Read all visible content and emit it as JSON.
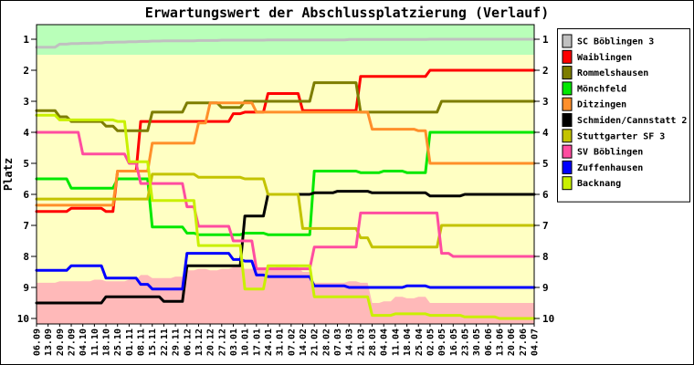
{
  "title": "Erwartungswert der Abschlussplatzierung (Verlauf)",
  "chart_data": {
    "type": "line",
    "title": "Erwartungswert der Abschlussplatzierung (Verlauf)",
    "xlabel": "",
    "ylabel": "Platz",
    "y_axis_inverted": true,
    "y_ticks": [
      1,
      2,
      3,
      4,
      5,
      6,
      7,
      8,
      9,
      10
    ],
    "ylim": [
      0.5,
      10.2
    ],
    "grid": false,
    "legend_position": "top-right",
    "x_tick_labels": [
      "06.09",
      "13.09",
      "20.09",
      "27.09",
      "04.10",
      "11.10",
      "18.10",
      "25.10",
      "01.11",
      "08.11",
      "15.11",
      "22.11",
      "29.11",
      "06.12",
      "13.12",
      "20.12",
      "27.12",
      "03.01",
      "10.01",
      "17.01",
      "24.01",
      "31.01",
      "07.02",
      "14.02",
      "21.02",
      "28.02",
      "07.03",
      "14.03",
      "21.03",
      "28.03",
      "04.04",
      "11.04",
      "18.04",
      "25.04",
      "02.05",
      "09.05",
      "16.05",
      "23.05",
      "30.05",
      "06.06",
      "13.06",
      "20.06",
      "27.06",
      "04.07"
    ],
    "background_zones": [
      {
        "name": "promotion-zone",
        "color": "#b9ffb9",
        "from_platz": 0.5,
        "to_platz": 1.5
      },
      {
        "name": "plot-background",
        "color": "#ffffc3"
      },
      {
        "name": "relegation-zone",
        "color": "#ffb9b9",
        "to_platz": 10.2,
        "top_edge_by_week": [
          8.85,
          8.85,
          8.8,
          8.8,
          8.8,
          8.75,
          8.8,
          8.8,
          8.75,
          8.6,
          8.7,
          8.7,
          8.65,
          8.45,
          8.4,
          8.45,
          8.4,
          8.35,
          8.4,
          8.35,
          8.35,
          8.3,
          8.35,
          8.5,
          8.85,
          8.85,
          8.85,
          8.8,
          8.85,
          9.5,
          9.45,
          9.3,
          9.35,
          9.3,
          9.5,
          9.5,
          9.5,
          9.5,
          9.5,
          9.5,
          9.5,
          9.5,
          9.5,
          9.5
        ]
      }
    ],
    "series": [
      {
        "name": "SC Böblingen 3",
        "color": "#c0c0c0",
        "values": [
          1.26,
          1.26,
          1.16,
          1.14,
          1.13,
          1.12,
          1.1,
          1.09,
          1.08,
          1.07,
          1.06,
          1.05,
          1.05,
          1.05,
          1.04,
          1.04,
          1.03,
          1.03,
          1.03,
          1.03,
          1.02,
          1.02,
          1.02,
          1.02,
          1.02,
          1.02,
          1.02,
          1.01,
          1.01,
          1.01,
          1.01,
          1.01,
          1.01,
          1.01,
          1.0,
          1.0,
          1.0,
          1.0,
          1.0,
          1.0,
          1.0,
          1.0,
          1.0,
          1.0
        ]
      },
      {
        "name": "Waiblingen",
        "color": "#ff0000",
        "values": [
          6.55,
          6.55,
          6.55,
          6.45,
          6.45,
          6.45,
          6.55,
          5.25,
          5.25,
          3.65,
          3.65,
          3.65,
          3.65,
          3.65,
          3.65,
          3.65,
          3.65,
          3.4,
          3.35,
          3.35,
          2.75,
          2.75,
          2.75,
          3.3,
          3.3,
          3.3,
          3.3,
          3.3,
          2.2,
          2.2,
          2.2,
          2.2,
          2.2,
          2.2,
          2.0,
          2.0,
          2.0,
          2.0,
          2.0,
          2.0,
          2.0,
          2.0,
          2.0,
          2.0
        ]
      },
      {
        "name": "Rommelshausen",
        "color": "#7d7d00",
        "values": [
          3.3,
          3.3,
          3.5,
          3.65,
          3.65,
          3.65,
          3.8,
          3.95,
          3.95,
          3.95,
          3.35,
          3.35,
          3.35,
          3.05,
          3.05,
          3.05,
          3.2,
          3.2,
          3.0,
          3.0,
          3.0,
          3.0,
          3.0,
          3.0,
          2.4,
          2.4,
          2.4,
          2.4,
          3.35,
          3.35,
          3.35,
          3.35,
          3.35,
          3.35,
          3.35,
          3.0,
          3.0,
          3.0,
          3.0,
          3.0,
          3.0,
          3.0,
          3.0,
          3.0
        ]
      },
      {
        "name": "Mönchfeld",
        "color": "#00e800",
        "values": [
          5.5,
          5.5,
          5.5,
          5.8,
          5.8,
          5.8,
          5.8,
          5.5,
          5.5,
          5.5,
          7.05,
          7.05,
          7.05,
          7.25,
          7.3,
          7.3,
          7.3,
          7.3,
          7.25,
          7.25,
          7.3,
          7.3,
          7.3,
          7.3,
          5.25,
          5.25,
          5.25,
          5.25,
          5.3,
          5.3,
          5.25,
          5.25,
          5.3,
          5.3,
          4.0,
          4.0,
          4.0,
          4.0,
          4.0,
          4.0,
          4.0,
          4.0,
          4.0,
          4.0
        ]
      },
      {
        "name": "Ditzingen",
        "color": "#ff8f2a",
        "values": [
          6.35,
          6.35,
          6.35,
          6.35,
          6.35,
          6.35,
          6.35,
          5.25,
          5.25,
          5.25,
          4.35,
          4.35,
          4.35,
          4.35,
          3.7,
          3.05,
          3.05,
          3.05,
          3.05,
          3.35,
          3.35,
          3.35,
          3.35,
          3.35,
          3.35,
          3.35,
          3.35,
          3.35,
          3.35,
          3.9,
          3.9,
          3.9,
          3.9,
          3.95,
          5.0,
          5.0,
          5.0,
          5.0,
          5.0,
          5.0,
          5.0,
          5.0,
          5.0,
          5.0
        ]
      },
      {
        "name": "Schmiden/Cannstatt 2",
        "color": "#000000",
        "values": [
          9.5,
          9.5,
          9.5,
          9.5,
          9.5,
          9.5,
          9.3,
          9.3,
          9.3,
          9.3,
          9.3,
          9.45,
          9.45,
          8.3,
          8.3,
          8.3,
          8.3,
          8.3,
          6.7,
          6.7,
          6.0,
          6.0,
          6.0,
          6.0,
          5.95,
          5.95,
          5.9,
          5.9,
          5.9,
          5.95,
          5.95,
          5.95,
          5.95,
          5.95,
          6.05,
          6.05,
          6.05,
          6.0,
          6.0,
          6.0,
          6.0,
          6.0,
          6.0,
          6.0
        ]
      },
      {
        "name": "Stuttgarter SF 3",
        "color": "#c3c300",
        "values": [
          6.15,
          6.15,
          6.15,
          6.15,
          6.15,
          6.15,
          6.15,
          6.15,
          6.15,
          6.15,
          5.35,
          5.35,
          5.35,
          5.35,
          5.45,
          5.45,
          5.45,
          5.45,
          5.5,
          5.5,
          6.0,
          6.0,
          6.0,
          7.1,
          7.1,
          7.1,
          7.1,
          7.1,
          7.4,
          7.7,
          7.7,
          7.7,
          7.7,
          7.7,
          7.7,
          7.0,
          7.0,
          7.0,
          7.0,
          7.0,
          7.0,
          7.0,
          7.0,
          7.0
        ]
      },
      {
        "name": "SV Böblingen",
        "color": "#ff4da0",
        "values": [
          4.0,
          4.0,
          4.0,
          4.0,
          4.7,
          4.7,
          4.7,
          4.7,
          5.0,
          5.65,
          5.65,
          5.65,
          5.65,
          6.4,
          7.03,
          7.03,
          7.03,
          7.5,
          7.5,
          8.4,
          8.4,
          8.4,
          8.4,
          8.4,
          7.7,
          7.7,
          7.7,
          7.7,
          6.6,
          6.6,
          6.6,
          6.6,
          6.6,
          6.6,
          6.6,
          7.9,
          8.0,
          8.0,
          8.0,
          8.0,
          8.0,
          8.0,
          8.0,
          8.0
        ]
      },
      {
        "name": "Zuffenhausen",
        "color": "#0000ff",
        "values": [
          8.45,
          8.45,
          8.45,
          8.3,
          8.3,
          8.3,
          8.7,
          8.7,
          8.7,
          8.9,
          9.05,
          9.05,
          9.05,
          7.9,
          7.9,
          7.9,
          7.9,
          8.1,
          8.15,
          8.6,
          8.65,
          8.65,
          8.65,
          8.65,
          8.95,
          8.95,
          8.95,
          9.0,
          9.0,
          9.0,
          9.0,
          9.0,
          8.95,
          8.95,
          9.0,
          9.0,
          9.0,
          9.0,
          9.0,
          9.0,
          9.0,
          9.0,
          9.0,
          9.0
        ]
      },
      {
        "name": "Backnang",
        "color": "#c9f000",
        "values": [
          3.45,
          3.45,
          3.6,
          3.6,
          3.6,
          3.6,
          3.6,
          3.65,
          4.95,
          4.95,
          6.2,
          6.2,
          6.2,
          6.2,
          7.65,
          7.65,
          7.65,
          7.65,
          9.05,
          9.05,
          8.3,
          8.3,
          8.3,
          8.3,
          9.3,
          9.3,
          9.3,
          9.3,
          9.3,
          9.9,
          9.9,
          9.85,
          9.85,
          9.85,
          9.9,
          9.9,
          9.9,
          9.95,
          9.95,
          9.95,
          10.0,
          10.0,
          10.0,
          10.0
        ]
      }
    ]
  }
}
